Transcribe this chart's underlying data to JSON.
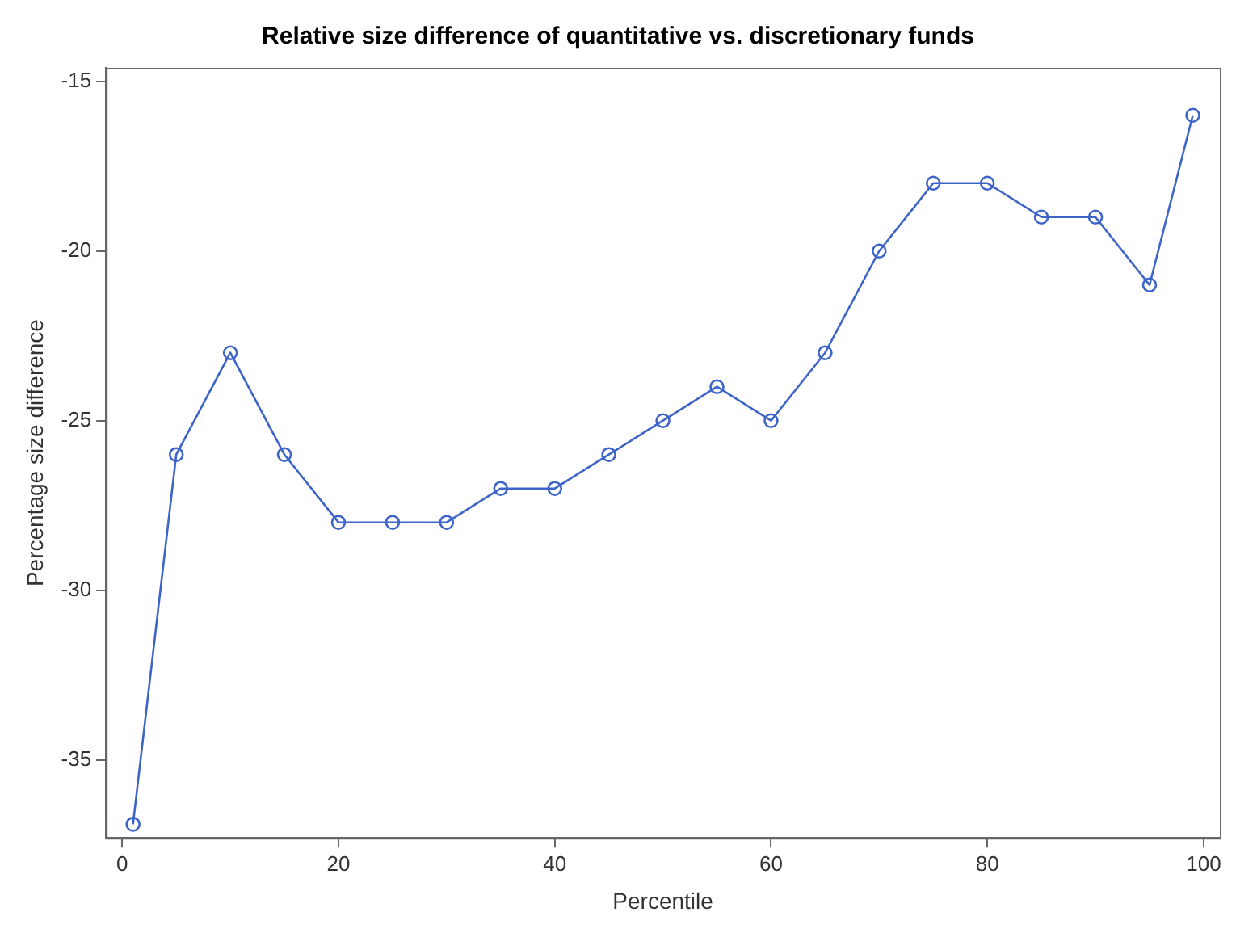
{
  "chart_data": {
    "type": "line",
    "title": "Relative size difference of quantitative vs. discretionary funds",
    "xlabel": "Percentile",
    "ylabel": "Percentage size difference",
    "x": [
      1,
      5,
      10,
      15,
      20,
      25,
      30,
      35,
      40,
      45,
      50,
      55,
      60,
      65,
      70,
      75,
      80,
      85,
      90,
      95,
      99
    ],
    "series": [
      {
        "color": "#3d64c8",
        "values": [
          -36.9,
          -26,
          -23,
          -26,
          -28,
          -28,
          -28,
          -27,
          -27,
          -26,
          -25,
          -24,
          -25,
          -23,
          -20,
          -18,
          -18,
          -19,
          -19,
          -21,
          -16
        ]
      }
    ],
    "xlim": [
      -1.5,
      101.5
    ],
    "xticks": [
      0,
      20,
      40,
      60,
      80,
      100
    ],
    "ylim": [
      -37.3,
      -14.6
    ],
    "yticks": [
      -35,
      -30,
      -25,
      -20,
      -15
    ],
    "grid": false,
    "legend": false,
    "marker": "circle",
    "line_style": "solid"
  }
}
